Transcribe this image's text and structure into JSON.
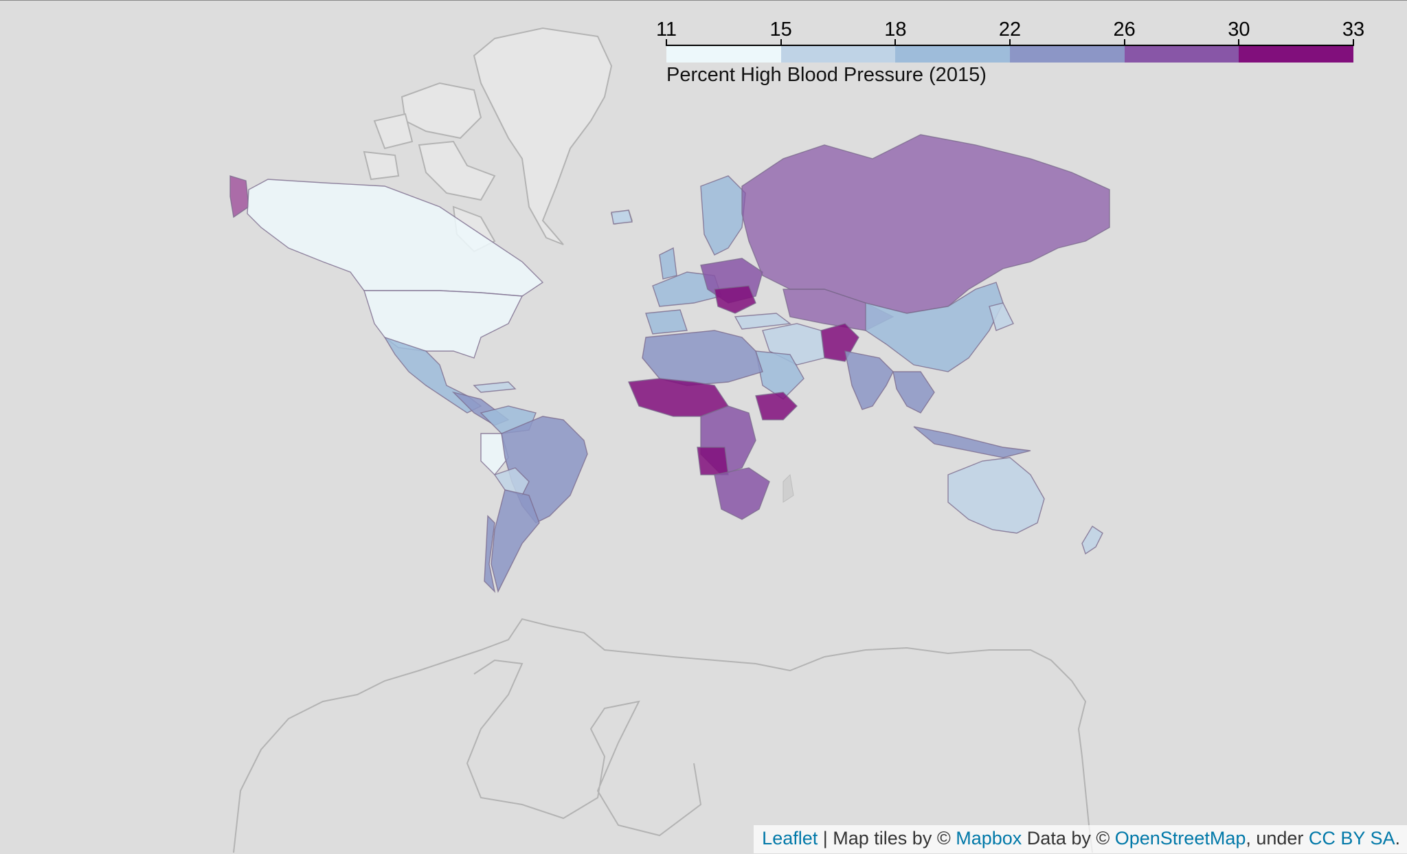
{
  "legend": {
    "title": "Percent High Blood Pressure (2015)",
    "ticks": [
      "11",
      "15",
      "18",
      "22",
      "26",
      "30",
      "33"
    ],
    "colors": [
      "#edf8fb",
      "#bfd3e6",
      "#9ebcda",
      "#8c96c6",
      "#8856a7",
      "#810f7c"
    ]
  },
  "attribution": {
    "leaflet_link": "Leaflet",
    "sep": " | Map tiles by © ",
    "mapbox_link": "Mapbox",
    "data_by": " Data by © ",
    "osm_link": "OpenStreetMap",
    "under": ", under ",
    "license_link": "CC BY SA",
    "end": "."
  },
  "colors": {
    "background": "#dddddd",
    "land_outline": "#b3b3b3",
    "link": "#0078a8"
  }
}
